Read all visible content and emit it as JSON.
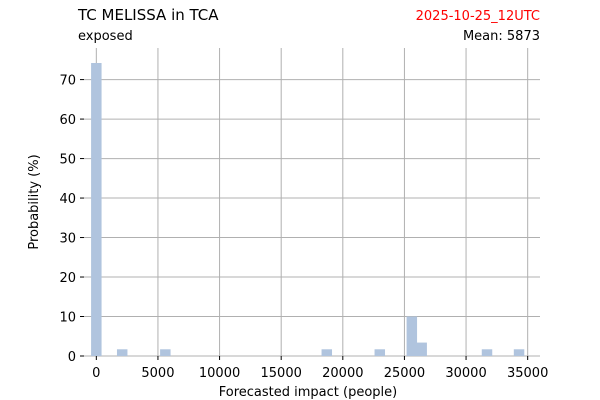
{
  "header": {
    "title": "TC MELISSA in TCA",
    "subtitle": "exposed",
    "timestamp": "2025-10-25_12UTC",
    "mean_label": "Mean: 5873"
  },
  "colors": {
    "bar": "#b0c4de",
    "grid": "#b0b0b0",
    "timestamp": "#ff0000",
    "text": "#000000"
  },
  "chart_data": {
    "type": "bar",
    "title": "TC MELISSA in TCA",
    "xlabel": "Forecasted impact (people)",
    "ylabel": "Probability (%)",
    "xlim": [
      -1000,
      36000
    ],
    "ylim": [
      0,
      78
    ],
    "grid": true,
    "bin_width": 850,
    "x_ticks": [
      0,
      5000,
      10000,
      15000,
      20000,
      25000,
      30000,
      35000
    ],
    "y_ticks": [
      0,
      10,
      20,
      30,
      40,
      50,
      60,
      70
    ],
    "bars": [
      {
        "x": 0,
        "value": 74.2
      },
      {
        "x": 2100,
        "value": 1.7
      },
      {
        "x": 5600,
        "value": 1.7
      },
      {
        "x": 18700,
        "value": 1.7
      },
      {
        "x": 23000,
        "value": 1.7
      },
      {
        "x": 25600,
        "value": 10.0
      },
      {
        "x": 26400,
        "value": 3.4
      },
      {
        "x": 31700,
        "value": 1.7
      },
      {
        "x": 34300,
        "value": 1.7
      }
    ]
  }
}
